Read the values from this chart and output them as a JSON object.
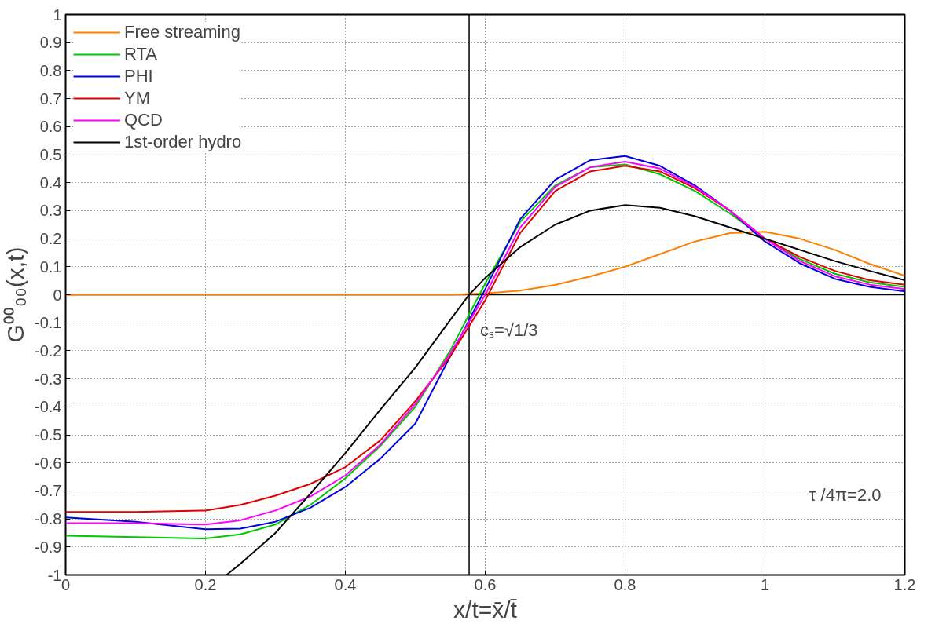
{
  "chart_data": {
    "type": "line",
    "xlabel": "x/t=x̄/t̄",
    "ylabel": "G⁰⁰₀₀(x,t)",
    "x": [
      0,
      0.1,
      0.2,
      0.25,
      0.3,
      0.35,
      0.4,
      0.45,
      0.5,
      0.55,
      0.6,
      0.65,
      0.7,
      0.75,
      0.8,
      0.85,
      0.9,
      0.95,
      1.0,
      1.05,
      1.1,
      1.15,
      1.2
    ],
    "series": [
      {
        "name": "Free streaming",
        "color": "#ff8000",
        "values": [
          0,
          0,
          0,
          0,
          0,
          0,
          0,
          0,
          0,
          0,
          0.005,
          0.015,
          0.035,
          0.065,
          0.1,
          0.145,
          0.19,
          0.22,
          0.225,
          0.2,
          0.16,
          0.11,
          0.068
        ]
      },
      {
        "name": "RTA",
        "color": "#00c800",
        "values": [
          -0.86,
          -0.865,
          -0.87,
          -0.855,
          -0.82,
          -0.75,
          -0.655,
          -0.54,
          -0.4,
          -0.2,
          0.04,
          0.26,
          0.39,
          0.455,
          0.465,
          0.43,
          0.37,
          0.29,
          0.2,
          0.127,
          0.075,
          0.044,
          0.028
        ]
      },
      {
        "name": "PHI",
        "color": "#0000e0",
        "values": [
          -0.795,
          -0.81,
          -0.837,
          -0.835,
          -0.81,
          -0.76,
          -0.686,
          -0.585,
          -0.46,
          -0.22,
          0.02,
          0.27,
          0.41,
          0.48,
          0.495,
          0.46,
          0.39,
          0.3,
          0.19,
          0.112,
          0.057,
          0.028,
          0.012
        ]
      },
      {
        "name": "YM",
        "color": "#e00000",
        "values": [
          -0.775,
          -0.775,
          -0.77,
          -0.75,
          -0.717,
          -0.675,
          -0.615,
          -0.52,
          -0.38,
          -0.22,
          -0.02,
          0.22,
          0.37,
          0.44,
          0.46,
          0.44,
          0.38,
          0.3,
          0.2,
          0.135,
          0.085,
          0.052,
          0.036
        ]
      },
      {
        "name": "QCD",
        "color": "#ff00ff",
        "values": [
          -0.815,
          -0.815,
          -0.82,
          -0.805,
          -0.77,
          -0.72,
          -0.645,
          -0.535,
          -0.39,
          -0.21,
          0.0,
          0.24,
          0.385,
          0.455,
          0.475,
          0.45,
          0.385,
          0.3,
          0.2,
          0.12,
          0.066,
          0.036,
          0.02
        ]
      },
      {
        "name": "1st-order hydro",
        "color": "#000000",
        "x": [
          0.23,
          0.25,
          0.3,
          0.35,
          0.4,
          0.45,
          0.5,
          0.55,
          0.577,
          0.6,
          0.65,
          0.7,
          0.75,
          0.8,
          0.85,
          0.9,
          0.95,
          1.0,
          1.05,
          1.1,
          1.15,
          1.2
        ],
        "values": [
          -1.0,
          -0.96,
          -0.85,
          -0.71,
          -0.565,
          -0.41,
          -0.26,
          -0.09,
          0,
          0.06,
          0.17,
          0.25,
          0.3,
          0.32,
          0.31,
          0.28,
          0.24,
          0.2,
          0.16,
          0.12,
          0.085,
          0.052
        ]
      }
    ],
    "xlim": [
      0,
      1.2
    ],
    "xticks": [
      0,
      0.2,
      0.4,
      0.6,
      0.8,
      1,
      1.2
    ],
    "ylim": [
      -1,
      1
    ],
    "yticks": [
      -1,
      -0.9,
      -0.8,
      -0.7,
      -0.6,
      -0.5,
      -0.4,
      -0.3,
      -0.2,
      -0.1,
      0,
      0.1,
      0.2,
      0.3,
      0.4,
      0.5,
      0.6,
      0.7,
      0.8,
      0.9,
      1
    ],
    "ref_lines": [
      {
        "axis": "x",
        "value": 0.577,
        "label": "cₛ=√1/3",
        "color": "#000000"
      },
      {
        "axis": "y",
        "value": 0,
        "color": "#000000"
      }
    ],
    "annotations": [
      "τ /4π=2.0"
    ],
    "grid": true,
    "legend": "top left",
    "marker": "none",
    "line_style": "solid"
  }
}
